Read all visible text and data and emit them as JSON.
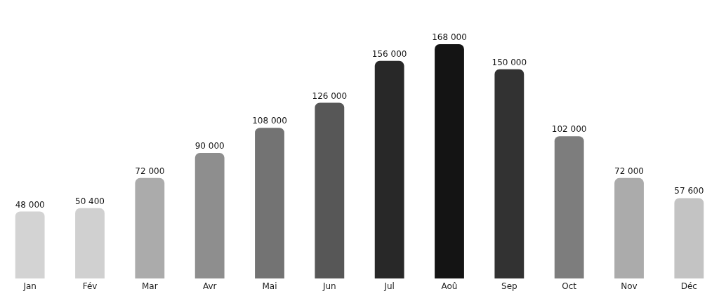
{
  "chart_data": {
    "type": "bar",
    "categories": [
      "Jan",
      "Fév",
      "Mar",
      "Avr",
      "Mai",
      "Jun",
      "Jul",
      "Aoû",
      "Sep",
      "Oct",
      "Nov",
      "Déc"
    ],
    "values": [
      48000,
      50400,
      72000,
      90000,
      108000,
      126000,
      156000,
      168000,
      150000,
      102000,
      72000,
      57600
    ],
    "colors": [
      "#d3d3d3",
      "#d0d0d0",
      "#ababab",
      "#8e8e8e",
      "#737373",
      "#575757",
      "#282828",
      "#141414",
      "#323232",
      "#7d7d7d",
      "#ababab",
      "#c3c3c3"
    ],
    "value_labels": [
      "48 000",
      "50 400",
      "72 000",
      "90 000",
      "108 000",
      "126 000",
      "156 000",
      "168 000",
      "150 000",
      "102 000",
      "72 000",
      "57 600"
    ]
  }
}
